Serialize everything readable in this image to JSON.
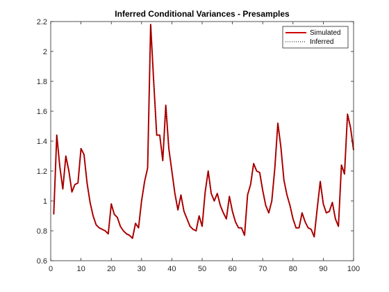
{
  "chart_data": {
    "type": "line",
    "title": "Inferred Conditional Variances - Presamples",
    "xlabel": "",
    "ylabel": "",
    "xlim": [
      0,
      100
    ],
    "ylim": [
      0.6,
      2.2
    ],
    "xticks": [
      0,
      10,
      20,
      30,
      40,
      50,
      60,
      70,
      80,
      90,
      100
    ],
    "xtick_labels": [
      "0",
      "10",
      "20",
      "30",
      "40",
      "50",
      "60",
      "70",
      "80",
      "90",
      "100"
    ],
    "yticks": [
      0.6,
      0.8,
      1.0,
      1.2,
      1.4,
      1.6,
      1.8,
      2.0,
      2.2
    ],
    "ytick_labels": [
      "0.6",
      "0.8",
      "1",
      "1.2",
      "1.4",
      "1.6",
      "1.8",
      "2",
      "2.2"
    ],
    "grid": false,
    "legend_position": "top-right",
    "x": [
      1,
      2,
      3,
      4,
      5,
      6,
      7,
      8,
      9,
      10,
      11,
      12,
      13,
      14,
      15,
      16,
      17,
      18,
      19,
      20,
      21,
      22,
      23,
      24,
      25,
      26,
      27,
      28,
      29,
      30,
      31,
      32,
      33,
      34,
      35,
      36,
      37,
      38,
      39,
      40,
      41,
      42,
      43,
      44,
      45,
      46,
      47,
      48,
      49,
      50,
      51,
      52,
      53,
      54,
      55,
      56,
      57,
      58,
      59,
      60,
      61,
      62,
      63,
      64,
      65,
      66,
      67,
      68,
      69,
      70,
      71,
      72,
      73,
      74,
      75,
      76,
      77,
      78,
      79,
      80,
      81,
      82,
      83,
      84,
      85,
      86,
      87,
      88,
      89,
      90,
      91,
      92,
      93,
      94,
      95,
      96,
      97,
      98,
      99,
      100
    ],
    "series": [
      {
        "name": "Simulated",
        "color": "#d00000",
        "style": "solid",
        "values": [
          0.91,
          1.44,
          1.23,
          1.08,
          1.3,
          1.2,
          1.06,
          1.11,
          1.12,
          1.35,
          1.31,
          1.12,
          0.99,
          0.9,
          0.84,
          0.82,
          0.81,
          0.8,
          0.78,
          0.98,
          0.91,
          0.89,
          0.83,
          0.8,
          0.78,
          0.77,
          0.75,
          0.85,
          0.82,
          1.0,
          1.13,
          1.22,
          2.18,
          1.8,
          1.44,
          1.44,
          1.27,
          1.64,
          1.35,
          1.2,
          1.05,
          0.94,
          1.04,
          0.93,
          0.88,
          0.83,
          0.81,
          0.8,
          0.9,
          0.83,
          1.06,
          1.2,
          1.05,
          1.0,
          1.05,
          0.97,
          0.92,
          0.88,
          1.03,
          0.93,
          0.86,
          0.82,
          0.82,
          0.77,
          1.04,
          1.11,
          1.25,
          1.2,
          1.19,
          1.07,
          0.97,
          0.92,
          1.0,
          1.22,
          1.52,
          1.36,
          1.14,
          1.04,
          0.97,
          0.88,
          0.82,
          0.82,
          0.92,
          0.86,
          0.82,
          0.81,
          0.76,
          0.95,
          1.13,
          0.98,
          0.92,
          0.93,
          0.99,
          0.88,
          0.83,
          1.24,
          1.18,
          1.58,
          1.49,
          1.34
        ]
      },
      {
        "name": "Inferred",
        "color": "#000000",
        "style": "dotted",
        "values": [
          0.91,
          1.44,
          1.23,
          1.08,
          1.3,
          1.2,
          1.06,
          1.11,
          1.12,
          1.35,
          1.31,
          1.12,
          0.99,
          0.9,
          0.84,
          0.82,
          0.81,
          0.8,
          0.78,
          0.98,
          0.91,
          0.89,
          0.83,
          0.8,
          0.78,
          0.77,
          0.75,
          0.85,
          0.82,
          1.0,
          1.13,
          1.22,
          2.18,
          1.8,
          1.44,
          1.44,
          1.27,
          1.64,
          1.35,
          1.2,
          1.05,
          0.94,
          1.04,
          0.93,
          0.88,
          0.83,
          0.81,
          0.8,
          0.9,
          0.83,
          1.06,
          1.2,
          1.05,
          1.0,
          1.05,
          0.97,
          0.92,
          0.88,
          1.03,
          0.93,
          0.86,
          0.82,
          0.82,
          0.77,
          1.04,
          1.11,
          1.25,
          1.2,
          1.19,
          1.07,
          0.97,
          0.92,
          1.0,
          1.22,
          1.52,
          1.36,
          1.14,
          1.04,
          0.97,
          0.88,
          0.82,
          0.82,
          0.92,
          0.86,
          0.82,
          0.81,
          0.76,
          0.95,
          1.13,
          0.98,
          0.92,
          0.93,
          0.99,
          0.88,
          0.83,
          1.24,
          1.18,
          1.58,
          1.49,
          1.34
        ]
      }
    ]
  }
}
